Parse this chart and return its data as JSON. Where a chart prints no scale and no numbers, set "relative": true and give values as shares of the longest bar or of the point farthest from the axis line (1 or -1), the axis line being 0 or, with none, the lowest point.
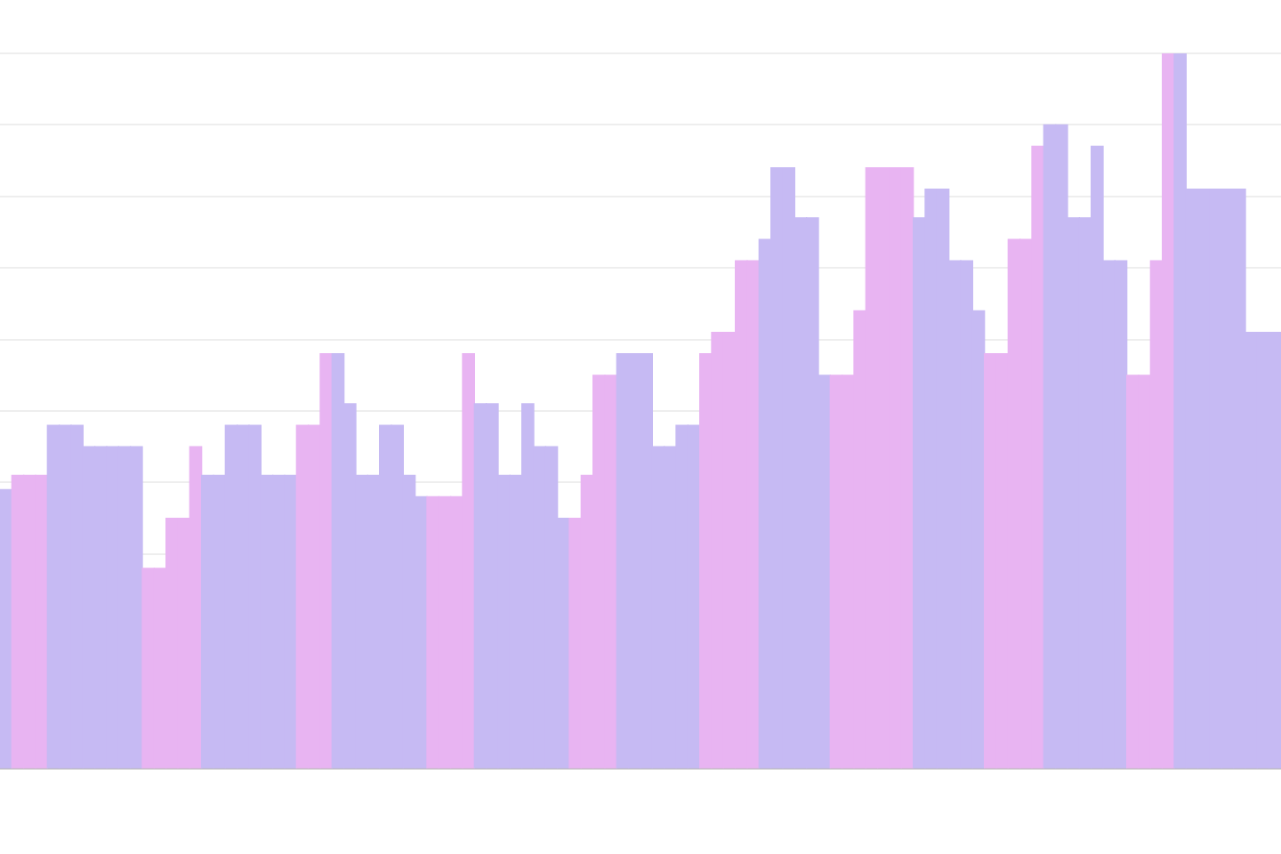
{
  "chart_data": {
    "type": "bar",
    "relative": true,
    "grid": "y",
    "categories": [
      null,
      null,
      null,
      null,
      null,
      null,
      null,
      null,
      null,
      null,
      null,
      null,
      null,
      null,
      null,
      null,
      null,
      null,
      null,
      null,
      null,
      null,
      null,
      null,
      null,
      null,
      null,
      null,
      null,
      null,
      null,
      null,
      null,
      null,
      null,
      null,
      null,
      null,
      null,
      null,
      null,
      null,
      null,
      null,
      null,
      null,
      null,
      null,
      null,
      null,
      null,
      null,
      null,
      null,
      null,
      null,
      null,
      null,
      null,
      null,
      null,
      null,
      null,
      null,
      null,
      null,
      null,
      null,
      null,
      null,
      null,
      null,
      null,
      null,
      null,
      null,
      null,
      null,
      null,
      null,
      null,
      null,
      null,
      null,
      null,
      null,
      null,
      null,
      null,
      null,
      null,
      null,
      null,
      null,
      null,
      null,
      null,
      null,
      null,
      null,
      null,
      null,
      null,
      null,
      null,
      null,
      null,
      null
    ],
    "values": [
      0.39,
      0.41,
      0.41,
      0.41,
      0.48,
      0.48,
      0.48,
      0.45,
      0.45,
      0.45,
      0.45,
      0.45,
      0.28,
      0.28,
      0.35,
      0.35,
      0.45,
      0.41,
      0.41,
      0.48,
      0.48,
      0.48,
      0.41,
      0.41,
      0.41,
      0.48,
      0.48,
      0.58,
      0.58,
      0.51,
      0.41,
      0.41,
      0.48,
      0.48,
      0.41,
      0.38,
      0.38,
      0.38,
      0.38,
      0.58,
      0.51,
      0.51,
      0.41,
      0.41,
      0.51,
      0.45,
      0.45,
      0.35,
      0.35,
      0.41,
      0.55,
      0.55,
      0.58,
      0.58,
      0.58,
      0.45,
      0.45,
      0.48,
      0.48,
      0.58,
      0.61,
      0.61,
      0.71,
      0.71,
      0.74,
      0.84,
      0.84,
      0.77,
      0.77,
      0.55,
      0.55,
      0.55,
      0.64,
      0.84,
      0.84,
      0.84,
      0.84,
      0.77,
      0.81,
      0.81,
      0.71,
      0.71,
      0.64,
      0.58,
      0.58,
      0.74,
      0.74,
      0.87,
      0.9,
      0.9,
      0.77,
      0.77,
      0.87,
      0.71,
      0.71,
      0.55,
      0.55,
      0.71,
      1,
      1,
      0.81,
      0.81,
      0.81,
      0.81,
      0.81,
      0.61,
      0.61,
      0.61
    ],
    "colors": [
      "#c6baf3",
      "#e8b4f2",
      "#e8b4f2",
      "#e8b4f2",
      "#c6baf3",
      "#c6baf3",
      "#c6baf3",
      "#c6baf3",
      "#c6baf3",
      "#c6baf3",
      "#c6baf3",
      "#c6baf3",
      "#e8b4f2",
      "#e8b4f2",
      "#e8b4f2",
      "#e8b4f2",
      "#e8b4f2",
      "#c6baf3",
      "#c6baf3",
      "#c6baf3",
      "#c6baf3",
      "#c6baf3",
      "#c6baf3",
      "#c6baf3",
      "#c6baf3",
      "#e8b4f2",
      "#e8b4f2",
      "#e8b4f2",
      "#c6baf3",
      "#c6baf3",
      "#c6baf3",
      "#c6baf3",
      "#c6baf3",
      "#c6baf3",
      "#c6baf3",
      "#c6baf3",
      "#e8b4f2",
      "#e8b4f2",
      "#e8b4f2",
      "#e8b4f2",
      "#c6baf3",
      "#c6baf3",
      "#c6baf3",
      "#c6baf3",
      "#c6baf3",
      "#c6baf3",
      "#c6baf3",
      "#c6baf3",
      "#e8b4f2",
      "#e8b4f2",
      "#e8b4f2",
      "#e8b4f2",
      "#c6baf3",
      "#c6baf3",
      "#c6baf3",
      "#c6baf3",
      "#c6baf3",
      "#c6baf3",
      "#c6baf3",
      "#e8b4f2",
      "#e8b4f2",
      "#e8b4f2",
      "#e8b4f2",
      "#e8b4f2",
      "#c6baf3",
      "#c6baf3",
      "#c6baf3",
      "#c6baf3",
      "#c6baf3",
      "#c6baf3",
      "#e8b4f2",
      "#e8b4f2",
      "#e8b4f2",
      "#e8b4f2",
      "#e8b4f2",
      "#e8b4f2",
      "#e8b4f2",
      "#c6baf3",
      "#c6baf3",
      "#c6baf3",
      "#c6baf3",
      "#c6baf3",
      "#c6baf3",
      "#e8b4f2",
      "#e8b4f2",
      "#e8b4f2",
      "#e8b4f2",
      "#e8b4f2",
      "#c6baf3",
      "#c6baf3",
      "#c6baf3",
      "#c6baf3",
      "#c6baf3",
      "#c6baf3",
      "#c6baf3",
      "#e8b4f2",
      "#e8b4f2",
      "#e8b4f2",
      "#e8b4f2",
      "#c6baf3",
      "#c6baf3",
      "#c6baf3",
      "#c6baf3",
      "#c6baf3",
      "#c6baf3",
      "#c6baf3",
      "#c6baf3",
      "#c6baf3"
    ]
  }
}
